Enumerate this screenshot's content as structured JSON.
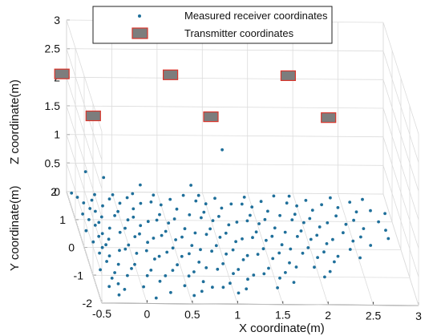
{
  "chart_data": {
    "type": "scatter",
    "projection": "3d",
    "xlabel": "X coordinate(m)",
    "ylabel": "Y coordinate(m)",
    "zlabel": "Z coordinate(m)",
    "xlim": [
      -0.5,
      3
    ],
    "ylim": [
      -2,
      2
    ],
    "zlim": [
      0,
      3
    ],
    "xticks": [
      "-0.5",
      "0",
      "0.5",
      "1",
      "1.5",
      "2",
      "2.5",
      "3"
    ],
    "yticks": [
      "-2",
      "-1",
      "0",
      "1",
      "2"
    ],
    "zticks": [
      "0",
      "0.5",
      "1",
      "1.5",
      "2",
      "2.5",
      "3"
    ],
    "grid": true,
    "legend_position": "top-center",
    "colors": {
      "receiver": "#1f6f9a",
      "transmitter_fill": "#7d7d7d",
      "transmitter_edge": "#d9352b"
    },
    "series": [
      {
        "name": "Transmitter coordinates",
        "marker": "square",
        "points": [
          [
            -0.6,
            1.5,
            2.3
          ],
          [
            0.6,
            1.5,
            2.3
          ],
          [
            1.9,
            1.5,
            2.3
          ],
          [
            -0.4,
            0.0,
            2.3
          ],
          [
            0.9,
            0.0,
            2.3
          ],
          [
            2.2,
            0.0,
            2.3
          ]
        ]
      },
      {
        "name": "Measured receiver coordinates",
        "marker": "dot",
        "points": [
          [
            -0.45,
            1.95,
            0.0
          ],
          [
            -0.4,
            1.8,
            0.0
          ],
          [
            -0.35,
            1.6,
            0.0
          ],
          [
            -0.3,
            1.4,
            0.0
          ],
          [
            -0.4,
            1.2,
            0.0
          ],
          [
            -0.35,
            1.0,
            0.0
          ],
          [
            -0.3,
            0.8,
            0.0
          ],
          [
            -0.42,
            0.6,
            0.0
          ],
          [
            -0.3,
            0.4,
            0.0
          ],
          [
            -0.38,
            0.2,
            0.0
          ],
          [
            -0.3,
            0.0,
            0.0
          ],
          [
            -0.35,
            -0.2,
            0.0
          ],
          [
            -0.3,
            -0.5,
            0.0
          ],
          [
            -0.4,
            -0.8,
            0.0
          ],
          [
            -0.3,
            -1.1,
            0.0
          ],
          [
            -0.36,
            -1.4,
            0.0
          ],
          [
            -0.28,
            -1.7,
            0.0
          ],
          [
            -0.2,
            1.9,
            0.0
          ],
          [
            -0.15,
            1.5,
            0.0
          ],
          [
            -0.2,
            1.1,
            0.0
          ],
          [
            -0.15,
            0.7,
            0.0
          ],
          [
            -0.2,
            0.3,
            0.0
          ],
          [
            -0.12,
            -0.1,
            0.0
          ],
          [
            -0.18,
            -0.6,
            0.0
          ],
          [
            -0.12,
            -1.0,
            0.0
          ],
          [
            -0.2,
            -1.5,
            0.0
          ],
          [
            -0.25,
            1.7,
            0.0
          ],
          [
            -0.25,
            1.3,
            0.0
          ],
          [
            -0.25,
            0.9,
            0.0
          ],
          [
            -0.25,
            0.5,
            0.0
          ],
          [
            -0.25,
            0.1,
            0.0
          ],
          [
            -0.25,
            -0.3,
            0.0
          ],
          [
            -0.25,
            -0.9,
            0.0
          ],
          [
            -0.25,
            -1.3,
            0.0
          ],
          [
            0.0,
            1.9,
            0.0
          ],
          [
            0.05,
            1.6,
            0.0
          ],
          [
            0.0,
            1.3,
            0.0
          ],
          [
            0.08,
            1.0,
            0.0
          ],
          [
            0.02,
            0.7,
            0.0
          ],
          [
            0.1,
            0.4,
            0.0
          ],
          [
            0.0,
            0.1,
            0.0
          ],
          [
            0.06,
            -0.2,
            0.0
          ],
          [
            0.0,
            -0.6,
            0.0
          ],
          [
            0.1,
            -1.0,
            0.0
          ],
          [
            0.02,
            -1.4,
            0.0
          ],
          [
            0.12,
            -1.8,
            0.0
          ],
          [
            0.15,
            1.8,
            0.0
          ],
          [
            0.18,
            1.4,
            0.0
          ],
          [
            0.15,
            1.1,
            0.0
          ],
          [
            0.2,
            0.8,
            0.0
          ],
          [
            0.16,
            0.5,
            0.0
          ],
          [
            0.22,
            0.2,
            0.0
          ],
          [
            0.18,
            -0.1,
            0.0
          ],
          [
            0.24,
            -0.4,
            0.0
          ],
          [
            0.16,
            -0.8,
            0.0
          ],
          [
            0.22,
            -1.2,
            0.0
          ],
          [
            -0.05,
            1.75,
            0.0
          ],
          [
            -0.05,
            1.15,
            0.0
          ],
          [
            -0.05,
            0.55,
            0.0
          ],
          [
            -0.05,
            -0.05,
            0.0
          ],
          [
            -0.05,
            -0.75,
            0.0
          ],
          [
            0.28,
            1.6,
            0.0
          ],
          [
            0.3,
            0.95,
            0.0
          ],
          [
            0.3,
            0.35,
            0.0
          ],
          [
            0.3,
            -0.3,
            0.0
          ],
          [
            0.3,
            -1.0,
            0.0
          ],
          [
            0.3,
            -1.6,
            0.0
          ],
          [
            0.45,
            1.9,
            0.0
          ],
          [
            0.5,
            1.55,
            0.0
          ],
          [
            0.45,
            1.2,
            0.0
          ],
          [
            0.52,
            0.9,
            0.0
          ],
          [
            0.46,
            0.6,
            0.0
          ],
          [
            0.54,
            0.3,
            0.0
          ],
          [
            0.48,
            0.0,
            0.0
          ],
          [
            0.55,
            -0.3,
            0.0
          ],
          [
            0.47,
            -0.6,
            0.0
          ],
          [
            0.56,
            -1.0,
            0.0
          ],
          [
            0.48,
            -1.35,
            0.0
          ],
          [
            0.55,
            -1.7,
            0.0
          ],
          [
            0.62,
            1.75,
            0.0
          ],
          [
            0.66,
            1.4,
            0.0
          ],
          [
            0.6,
            1.05,
            0.0
          ],
          [
            0.68,
            0.7,
            0.0
          ],
          [
            0.62,
            0.4,
            0.0
          ],
          [
            0.7,
            0.1,
            0.0
          ],
          [
            0.64,
            -0.2,
            0.0
          ],
          [
            0.72,
            -0.5,
            0.0
          ],
          [
            0.63,
            -0.85,
            0.0
          ],
          [
            0.7,
            -1.2,
            0.0
          ],
          [
            0.65,
            -1.55,
            0.0
          ],
          [
            0.4,
            1.65,
            0.0
          ],
          [
            0.4,
            1.0,
            0.0
          ],
          [
            0.4,
            0.45,
            0.0
          ],
          [
            0.4,
            -0.15,
            0.0
          ],
          [
            0.4,
            -0.8,
            0.0
          ],
          [
            0.78,
            1.9,
            0.0
          ],
          [
            0.78,
            1.2,
            0.0
          ],
          [
            0.78,
            0.55,
            0.0
          ],
          [
            0.78,
            -0.05,
            0.0
          ],
          [
            0.78,
            -0.7,
            0.0
          ],
          [
            0.78,
            -1.4,
            0.0
          ],
          [
            0.95,
            1.9,
            0.0
          ],
          [
            1.0,
            1.6,
            0.0
          ],
          [
            0.95,
            1.3,
            0.0
          ],
          [
            1.02,
            1.0,
            0.0
          ],
          [
            0.96,
            0.7,
            0.0
          ],
          [
            1.04,
            0.4,
            0.0
          ],
          [
            0.97,
            0.1,
            0.0
          ],
          [
            1.05,
            -0.2,
            0.0
          ],
          [
            0.98,
            -0.55,
            0.0
          ],
          [
            1.06,
            -0.9,
            0.0
          ],
          [
            0.99,
            -1.25,
            0.0
          ],
          [
            1.05,
            -1.6,
            0.0
          ],
          [
            1.12,
            1.8,
            0.0
          ],
          [
            1.16,
            1.45,
            0.0
          ],
          [
            1.1,
            1.15,
            0.0
          ],
          [
            1.18,
            0.85,
            0.0
          ],
          [
            1.12,
            0.55,
            0.0
          ],
          [
            1.2,
            0.25,
            0.0
          ],
          [
            1.14,
            -0.05,
            0.0
          ],
          [
            1.22,
            -0.4,
            0.0
          ],
          [
            1.13,
            -0.75,
            0.0
          ],
          [
            1.2,
            -1.1,
            0.0
          ],
          [
            1.15,
            -1.45,
            0.0
          ],
          [
            0.9,
            1.7,
            0.0
          ],
          [
            0.9,
            1.1,
            0.0
          ],
          [
            0.9,
            0.5,
            0.0
          ],
          [
            0.9,
            -0.1,
            0.0
          ],
          [
            0.9,
            -0.75,
            0.0
          ],
          [
            0.9,
            -1.4,
            0.0
          ],
          [
            1.28,
            1.6,
            0.0
          ],
          [
            1.28,
            0.95,
            0.0
          ],
          [
            1.28,
            0.35,
            0.0
          ],
          [
            1.28,
            -0.25,
            0.0
          ],
          [
            1.28,
            -0.95,
            0.0
          ],
          [
            1.45,
            1.85,
            0.0
          ],
          [
            1.5,
            1.5,
            0.0
          ],
          [
            1.45,
            1.2,
            0.0
          ],
          [
            1.52,
            0.9,
            0.0
          ],
          [
            1.46,
            0.6,
            0.0
          ],
          [
            1.54,
            0.3,
            0.0
          ],
          [
            1.48,
            0.0,
            0.0
          ],
          [
            1.55,
            -0.35,
            0.0
          ],
          [
            1.47,
            -0.7,
            0.0
          ],
          [
            1.56,
            -1.05,
            0.0
          ],
          [
            1.5,
            -1.4,
            0.0
          ],
          [
            1.62,
            1.7,
            0.0
          ],
          [
            1.66,
            1.35,
            0.0
          ],
          [
            1.6,
            1.05,
            0.0
          ],
          [
            1.68,
            0.75,
            0.0
          ],
          [
            1.62,
            0.45,
            0.0
          ],
          [
            1.7,
            0.15,
            0.0
          ],
          [
            1.64,
            -0.15,
            0.0
          ],
          [
            1.72,
            -0.5,
            0.0
          ],
          [
            1.64,
            -0.85,
            0.0
          ],
          [
            1.7,
            -1.2,
            0.0
          ],
          [
            1.4,
            1.6,
            0.0
          ],
          [
            1.4,
            1.0,
            0.0
          ],
          [
            1.4,
            0.4,
            0.0
          ],
          [
            1.4,
            -0.2,
            0.0
          ],
          [
            1.4,
            -0.9,
            0.0
          ],
          [
            1.78,
            1.9,
            0.0
          ],
          [
            1.78,
            1.2,
            0.0
          ],
          [
            1.78,
            0.6,
            0.0
          ],
          [
            1.78,
            0.0,
            0.0
          ],
          [
            1.78,
            -0.65,
            0.0
          ],
          [
            1.95,
            1.9,
            0.0
          ],
          [
            2.0,
            1.55,
            0.0
          ],
          [
            1.95,
            1.25,
            0.0
          ],
          [
            2.02,
            0.95,
            0.0
          ],
          [
            1.96,
            0.65,
            0.0
          ],
          [
            2.04,
            0.35,
            0.0
          ],
          [
            1.98,
            0.05,
            0.0
          ],
          [
            2.05,
            -0.3,
            0.0
          ],
          [
            1.98,
            -0.65,
            0.0
          ],
          [
            2.06,
            -1.0,
            0.0
          ],
          [
            2.12,
            1.75,
            0.0
          ],
          [
            2.16,
            1.4,
            0.0
          ],
          [
            2.1,
            1.1,
            0.0
          ],
          [
            2.18,
            0.8,
            0.0
          ],
          [
            2.12,
            0.5,
            0.0
          ],
          [
            2.2,
            0.2,
            0.0
          ],
          [
            2.14,
            -0.1,
            0.0
          ],
          [
            2.22,
            -0.45,
            0.0
          ],
          [
            2.14,
            -0.8,
            0.0
          ],
          [
            1.9,
            1.65,
            0.0
          ],
          [
            1.9,
            1.05,
            0.0
          ],
          [
            1.9,
            0.45,
            0.0
          ],
          [
            1.9,
            -0.15,
            0.0
          ],
          [
            2.28,
            1.6,
            0.0
          ],
          [
            2.28,
            0.95,
            0.0
          ],
          [
            2.28,
            0.35,
            0.0
          ],
          [
            2.28,
            -0.25,
            0.0
          ],
          [
            2.4,
            1.85,
            0.0
          ],
          [
            2.45,
            1.5,
            0.0
          ],
          [
            2.4,
            1.2,
            0.0
          ],
          [
            2.48,
            0.9,
            0.0
          ],
          [
            2.42,
            0.6,
            0.0
          ],
          [
            2.5,
            0.3,
            0.0
          ],
          [
            2.44,
            0.0,
            0.0
          ],
          [
            2.52,
            -0.3,
            0.0
          ],
          [
            2.6,
            1.7,
            0.0
          ],
          [
            2.64,
            1.35,
            0.0
          ],
          [
            2.58,
            1.05,
            0.0
          ],
          [
            2.66,
            0.75,
            0.0
          ],
          [
            2.6,
            0.45,
            0.0
          ],
          [
            2.68,
            0.15,
            0.0
          ],
          [
            2.75,
            1.8,
            0.0
          ],
          [
            2.8,
            1.4,
            0.0
          ],
          [
            2.85,
            1.0,
            0.0
          ],
          [
            2.9,
            0.7,
            0.0
          ],
          [
            2.95,
            1.3,
            0.0
          ],
          [
            2.9,
            0.4,
            0.0
          ],
          [
            -0.3,
            1.9,
            0.4
          ],
          [
            -0.1,
            1.9,
            0.3
          ],
          [
            1.2,
            1.8,
            0.85
          ],
          [
            0.3,
            1.85,
            0.2
          ],
          [
            0.85,
            1.75,
            0.25
          ],
          [
            0.2,
            1.7,
            0.12
          ]
        ]
      }
    ]
  }
}
